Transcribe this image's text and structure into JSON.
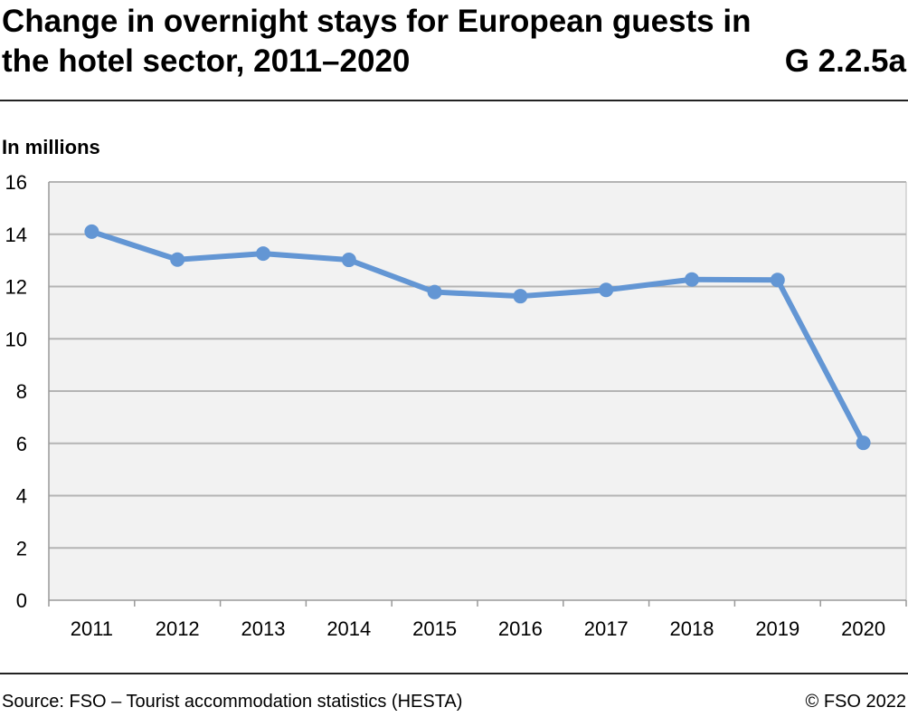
{
  "header": {
    "title": "Change in overnight stays for European guests in the hotel sector, 2011–2020",
    "code": "G 2.2.5a"
  },
  "footer": {
    "source": "Source: FSO – Tourist accommodation statistics (HESTA)",
    "copyright": "© FSO 2022"
  },
  "chart_data": {
    "type": "line",
    "title": "Change in overnight stays for European guests in the hotel sector, 2011–2020",
    "ylabel": "In millions",
    "categories": [
      "2011",
      "2012",
      "2013",
      "2014",
      "2015",
      "2016",
      "2017",
      "2018",
      "2019",
      "2020"
    ],
    "values": [
      14.1,
      13.03,
      13.26,
      13.02,
      11.79,
      11.63,
      11.87,
      12.27,
      12.25,
      6.02
    ],
    "ylim": [
      0,
      16
    ],
    "yticks": [
      0,
      2,
      4,
      6,
      8,
      10,
      12,
      14,
      16
    ],
    "grid": true,
    "color": "#6396d4",
    "background": "#f2f2f2"
  }
}
